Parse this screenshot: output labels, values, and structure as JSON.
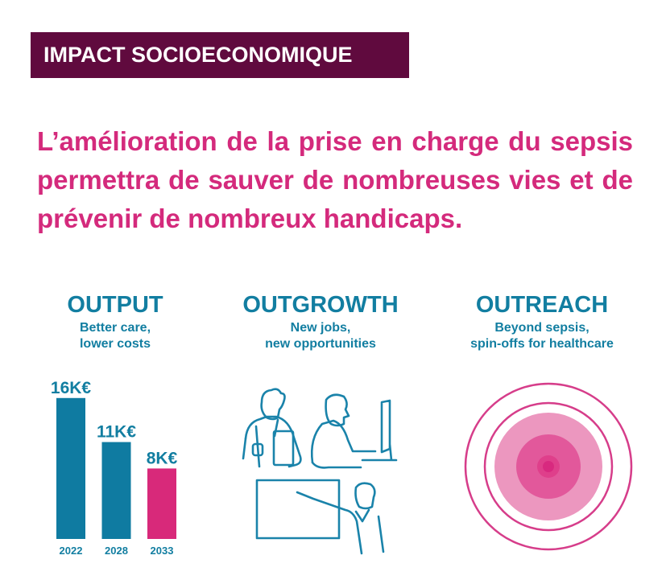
{
  "banner": {
    "title": "IMPACT SOCIOECONOMIQUE"
  },
  "headline": "L’amélioration de la prise en charge du sepsis permettra de sauver de nombreuses vies et de prévenir de nombreux handicaps.",
  "columns": [
    {
      "title": "OUTPUT",
      "subtitle_line1": "Better care,",
      "subtitle_line2": "lower costs"
    },
    {
      "title": "OUTGROWTH",
      "subtitle_line1": "New jobs,",
      "subtitle_line2": "new opportunities"
    },
    {
      "title": "OUTREACH",
      "subtitle_line1": "Beyond sepsis,",
      "subtitle_line2": "spin-offs for healthcare"
    }
  ],
  "icons": {
    "outgrowth": "healthcare-workers-illustration",
    "outreach": "concentric-target-icon"
  },
  "colors": {
    "banner": "#600a3e",
    "accent_pink": "#d42a7c",
    "teal": "#127ea1"
  },
  "chart_data": {
    "type": "bar",
    "categories": [
      "2022",
      "2028",
      "2033"
    ],
    "values": [
      16,
      11,
      8
    ],
    "data_labels": [
      "16K€",
      "11K€",
      "8K€"
    ],
    "colors": [
      "#0f7ba1",
      "#0f7ba1",
      "#d8297a"
    ],
    "unit": "K€"
  }
}
